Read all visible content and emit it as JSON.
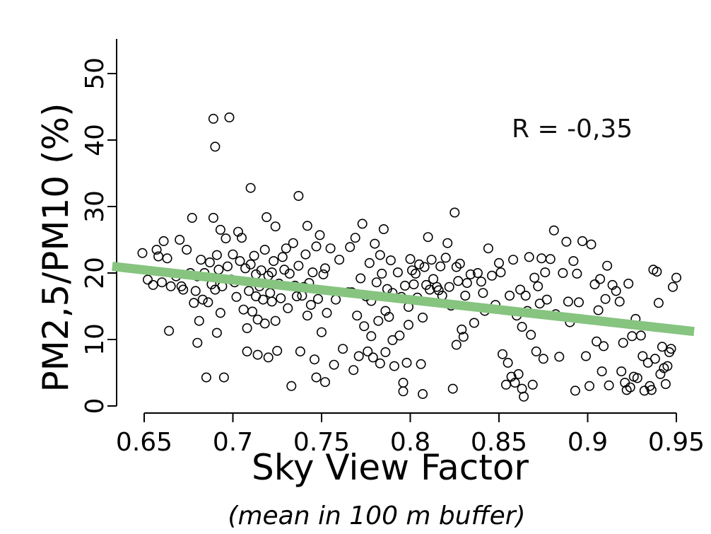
{
  "chart_data": {
    "type": "scatter",
    "xlabel": "Sky View Factor",
    "xlabel_sub": "(mean in 100 m buffer)",
    "ylabel": "PM2,5/PM10 (%)",
    "annotation": "R = -0,35",
    "xlim": [
      0.64,
      0.96
    ],
    "ylim": [
      0,
      55
    ],
    "x_ticks": [
      "0.65",
      "0.7",
      "0.75",
      "0.8",
      "0.85",
      "0.9",
      "0.95"
    ],
    "y_ticks": [
      "0",
      "10",
      "20",
      "30",
      "40",
      "50"
    ],
    "grid": false,
    "legend": "none",
    "trendline": {
      "x": [
        0.632,
        0.96
      ],
      "y": [
        21.0,
        11.2
      ],
      "color": "#86c480"
    },
    "marker_color": "#000000",
    "points": [
      [
        0.649,
        23.0
      ],
      [
        0.652,
        19.0
      ],
      [
        0.655,
        18.2
      ],
      [
        0.657,
        23.5
      ],
      [
        0.658,
        22.5
      ],
      [
        0.66,
        18.6
      ],
      [
        0.661,
        24.8
      ],
      [
        0.663,
        22.2
      ],
      [
        0.664,
        11.3
      ],
      [
        0.665,
        18.0
      ],
      [
        0.668,
        19.5
      ],
      [
        0.67,
        25.0
      ],
      [
        0.671,
        18.0
      ],
      [
        0.672,
        17.5
      ],
      [
        0.674,
        23.5
      ],
      [
        0.676,
        20.0
      ],
      [
        0.677,
        28.3
      ],
      [
        0.678,
        15.5
      ],
      [
        0.679,
        17.3
      ],
      [
        0.68,
        19.5
      ],
      [
        0.68,
        9.5
      ],
      [
        0.681,
        12.8
      ],
      [
        0.682,
        22.0
      ],
      [
        0.683,
        16.0
      ],
      [
        0.684,
        20.0
      ],
      [
        0.685,
        4.3
      ],
      [
        0.686,
        15.6
      ],
      [
        0.687,
        21.6
      ],
      [
        0.688,
        18.3
      ],
      [
        0.689,
        28.3
      ],
      [
        0.689,
        43.2
      ],
      [
        0.69,
        39.0
      ],
      [
        0.69,
        17.5
      ],
      [
        0.691,
        22.7
      ],
      [
        0.691,
        11.0
      ],
      [
        0.692,
        20.5
      ],
      [
        0.693,
        26.5
      ],
      [
        0.693,
        14.0
      ],
      [
        0.694,
        18.0
      ],
      [
        0.695,
        4.3
      ],
      [
        0.696,
        25.2
      ],
      [
        0.697,
        21.0
      ],
      [
        0.698,
        43.4
      ],
      [
        0.699,
        19.0
      ],
      [
        0.7,
        22.8
      ],
      [
        0.701,
        18.6
      ],
      [
        0.702,
        16.4
      ],
      [
        0.703,
        26.2
      ],
      [
        0.704,
        21.8
      ],
      [
        0.705,
        25.3
      ],
      [
        0.706,
        14.5
      ],
      [
        0.707,
        20.7
      ],
      [
        0.708,
        8.2
      ],
      [
        0.708,
        11.7
      ],
      [
        0.709,
        17.3
      ],
      [
        0.71,
        21.3
      ],
      [
        0.71,
        32.8
      ],
      [
        0.711,
        14.2
      ],
      [
        0.712,
        22.6
      ],
      [
        0.713,
        19.8
      ],
      [
        0.713,
        16.5
      ],
      [
        0.714,
        7.7
      ],
      [
        0.714,
        13.0
      ],
      [
        0.715,
        18.0
      ],
      [
        0.716,
        20.4
      ],
      [
        0.717,
        16.0
      ],
      [
        0.718,
        23.5
      ],
      [
        0.718,
        12.4
      ],
      [
        0.719,
        28.4
      ],
      [
        0.72,
        19.6
      ],
      [
        0.72,
        7.3
      ],
      [
        0.721,
        17.0
      ],
      [
        0.722,
        20.1
      ],
      [
        0.722,
        15.7
      ],
      [
        0.723,
        21.8
      ],
      [
        0.724,
        12.8
      ],
      [
        0.724,
        27.0
      ],
      [
        0.725,
        8.3
      ],
      [
        0.726,
        18.4
      ],
      [
        0.727,
        16.2
      ],
      [
        0.728,
        22.4
      ],
      [
        0.729,
        20.5
      ],
      [
        0.73,
        23.7
      ],
      [
        0.731,
        14.7
      ],
      [
        0.732,
        19.9
      ],
      [
        0.733,
        3.0
      ],
      [
        0.734,
        24.5
      ],
      [
        0.735,
        18.1
      ],
      [
        0.736,
        16.5
      ],
      [
        0.737,
        21.1
      ],
      [
        0.737,
        31.6
      ],
      [
        0.738,
        8.2
      ],
      [
        0.739,
        16.6
      ],
      [
        0.74,
        17.9
      ],
      [
        0.741,
        22.8
      ],
      [
        0.742,
        13.6
      ],
      [
        0.742,
        27.1
      ],
      [
        0.743,
        18.5
      ],
      [
        0.744,
        15.2
      ],
      [
        0.745,
        20.1
      ],
      [
        0.746,
        7.0
      ],
      [
        0.747,
        24.0
      ],
      [
        0.747,
        4.3
      ],
      [
        0.748,
        16.1
      ],
      [
        0.749,
        25.7
      ],
      [
        0.75,
        11.1
      ],
      [
        0.751,
        19.8
      ],
      [
        0.752,
        20.7
      ],
      [
        0.752,
        3.6
      ],
      [
        0.753,
        14.0
      ],
      [
        0.755,
        23.7
      ],
      [
        0.757,
        6.2
      ],
      [
        0.758,
        16.0
      ],
      [
        0.76,
        22.0
      ],
      [
        0.762,
        8.6
      ],
      [
        0.765,
        17.1
      ],
      [
        0.766,
        23.9
      ],
      [
        0.767,
        17.1
      ],
      [
        0.768,
        5.4
      ],
      [
        0.769,
        25.3
      ],
      [
        0.77,
        13.6
      ],
      [
        0.771,
        7.5
      ],
      [
        0.772,
        19.2
      ],
      [
        0.773,
        27.4
      ],
      [
        0.774,
        12.0
      ],
      [
        0.775,
        16.5
      ],
      [
        0.776,
        8.2
      ],
      [
        0.777,
        21.5
      ],
      [
        0.778,
        15.8
      ],
      [
        0.778,
        10.5
      ],
      [
        0.779,
        7.3
      ],
      [
        0.78,
        24.4
      ],
      [
        0.781,
        18.6
      ],
      [
        0.782,
        12.8
      ],
      [
        0.783,
        6.4
      ],
      [
        0.783,
        22.7
      ],
      [
        0.784,
        19.9
      ],
      [
        0.785,
        26.6
      ],
      [
        0.786,
        14.3
      ],
      [
        0.786,
        8.1
      ],
      [
        0.787,
        17.6
      ],
      [
        0.788,
        13.4
      ],
      [
        0.789,
        21.9
      ],
      [
        0.79,
        9.9
      ],
      [
        0.79,
        17.0
      ],
      [
        0.791,
        6.0
      ],
      [
        0.793,
        20.1
      ],
      [
        0.794,
        10.6
      ],
      [
        0.795,
        16.4
      ],
      [
        0.796,
        3.5
      ],
      [
        0.796,
        2.2
      ],
      [
        0.797,
        18.1
      ],
      [
        0.798,
        6.5
      ],
      [
        0.799,
        14.9
      ],
      [
        0.799,
        12.2
      ],
      [
        0.8,
        22.1
      ],
      [
        0.801,
        20.4
      ],
      [
        0.802,
        18.3
      ],
      [
        0.803,
        19.9
      ],
      [
        0.804,
        16.3
      ],
      [
        0.805,
        21.3
      ],
      [
        0.806,
        6.3
      ],
      [
        0.807,
        1.8
      ],
      [
        0.807,
        13.3
      ],
      [
        0.808,
        20.9
      ],
      [
        0.809,
        18.2
      ],
      [
        0.81,
        25.4
      ],
      [
        0.811,
        17.5
      ],
      [
        0.812,
        22.0
      ],
      [
        0.813,
        19.1
      ],
      [
        0.815,
        17.9
      ],
      [
        0.816,
        17.4
      ],
      [
        0.817,
        21.0
      ],
      [
        0.818,
        16.6
      ],
      [
        0.82,
        22.3
      ],
      [
        0.821,
        24.5
      ],
      [
        0.822,
        17.9
      ],
      [
        0.823,
        15.1
      ],
      [
        0.824,
        2.6
      ],
      [
        0.825,
        29.1
      ],
      [
        0.826,
        20.9
      ],
      [
        0.826,
        9.2
      ],
      [
        0.827,
        18.8
      ],
      [
        0.828,
        21.4
      ],
      [
        0.829,
        11.5
      ],
      [
        0.83,
        10.4
      ],
      [
        0.831,
        16.6
      ],
      [
        0.832,
        18.5
      ],
      [
        0.834,
        19.8
      ],
      [
        0.836,
        12.5
      ],
      [
        0.838,
        20.0
      ],
      [
        0.84,
        18.7
      ],
      [
        0.841,
        17.0
      ],
      [
        0.842,
        14.3
      ],
      [
        0.844,
        23.7
      ],
      [
        0.846,
        19.6
      ],
      [
        0.848,
        15.2
      ],
      [
        0.85,
        21.5
      ],
      [
        0.851,
        20.1
      ],
      [
        0.852,
        7.8
      ],
      [
        0.854,
        3.2
      ],
      [
        0.855,
        6.5
      ],
      [
        0.856,
        16.6
      ],
      [
        0.857,
        4.4
      ],
      [
        0.858,
        22.0
      ],
      [
        0.859,
        3.5
      ],
      [
        0.86,
        13.6
      ],
      [
        0.861,
        4.8
      ],
      [
        0.862,
        17.5
      ],
      [
        0.863,
        11.9
      ],
      [
        0.863,
        2.6
      ],
      [
        0.864,
        1.4
      ],
      [
        0.865,
        16.6
      ],
      [
        0.866,
        14.3
      ],
      [
        0.867,
        22.4
      ],
      [
        0.868,
        10.7
      ],
      [
        0.869,
        3.2
      ],
      [
        0.87,
        19.3
      ],
      [
        0.871,
        8.2
      ],
      [
        0.872,
        18.0
      ],
      [
        0.873,
        15.4
      ],
      [
        0.874,
        22.2
      ],
      [
        0.875,
        7.1
      ],
      [
        0.876,
        20.1
      ],
      [
        0.877,
        16.0
      ],
      [
        0.879,
        22.1
      ],
      [
        0.881,
        26.4
      ],
      [
        0.882,
        13.8
      ],
      [
        0.884,
        7.4
      ],
      [
        0.886,
        20.0
      ],
      [
        0.888,
        24.7
      ],
      [
        0.889,
        15.7
      ],
      [
        0.89,
        12.6
      ],
      [
        0.892,
        21.8
      ],
      [
        0.893,
        2.3
      ],
      [
        0.894,
        19.9
      ],
      [
        0.895,
        15.6
      ],
      [
        0.897,
        24.8
      ],
      [
        0.899,
        7.5
      ],
      [
        0.901,
        3.0
      ],
      [
        0.902,
        24.3
      ],
      [
        0.904,
        18.3
      ],
      [
        0.905,
        9.7
      ],
      [
        0.906,
        14.4
      ],
      [
        0.907,
        19.1
      ],
      [
        0.908,
        5.2
      ],
      [
        0.909,
        9.0
      ],
      [
        0.91,
        16.1
      ],
      [
        0.911,
        21.1
      ],
      [
        0.912,
        3.1
      ],
      [
        0.914,
        18.2
      ],
      [
        0.916,
        17.3
      ],
      [
        0.918,
        15.7
      ],
      [
        0.919,
        5.2
      ],
      [
        0.92,
        9.5
      ],
      [
        0.921,
        3.5
      ],
      [
        0.922,
        2.4
      ],
      [
        0.923,
        18.4
      ],
      [
        0.924,
        2.8
      ],
      [
        0.925,
        10.5
      ],
      [
        0.926,
        4.4
      ],
      [
        0.927,
        13.1
      ],
      [
        0.928,
        4.2
      ],
      [
        0.93,
        10.6
      ],
      [
        0.931,
        7.5
      ],
      [
        0.932,
        2.3
      ],
      [
        0.934,
        6.5
      ],
      [
        0.935,
        3.0
      ],
      [
        0.936,
        2.4
      ],
      [
        0.937,
        20.5
      ],
      [
        0.938,
        7.1
      ],
      [
        0.939,
        20.2
      ],
      [
        0.94,
        15.5
      ],
      [
        0.941,
        4.8
      ],
      [
        0.942,
        8.9
      ],
      [
        0.943,
        5.7
      ],
      [
        0.944,
        3.3
      ],
      [
        0.945,
        6.0
      ],
      [
        0.946,
        8.1
      ],
      [
        0.947,
        8.6
      ],
      [
        0.948,
        17.9
      ],
      [
        0.95,
        19.3
      ]
    ]
  }
}
